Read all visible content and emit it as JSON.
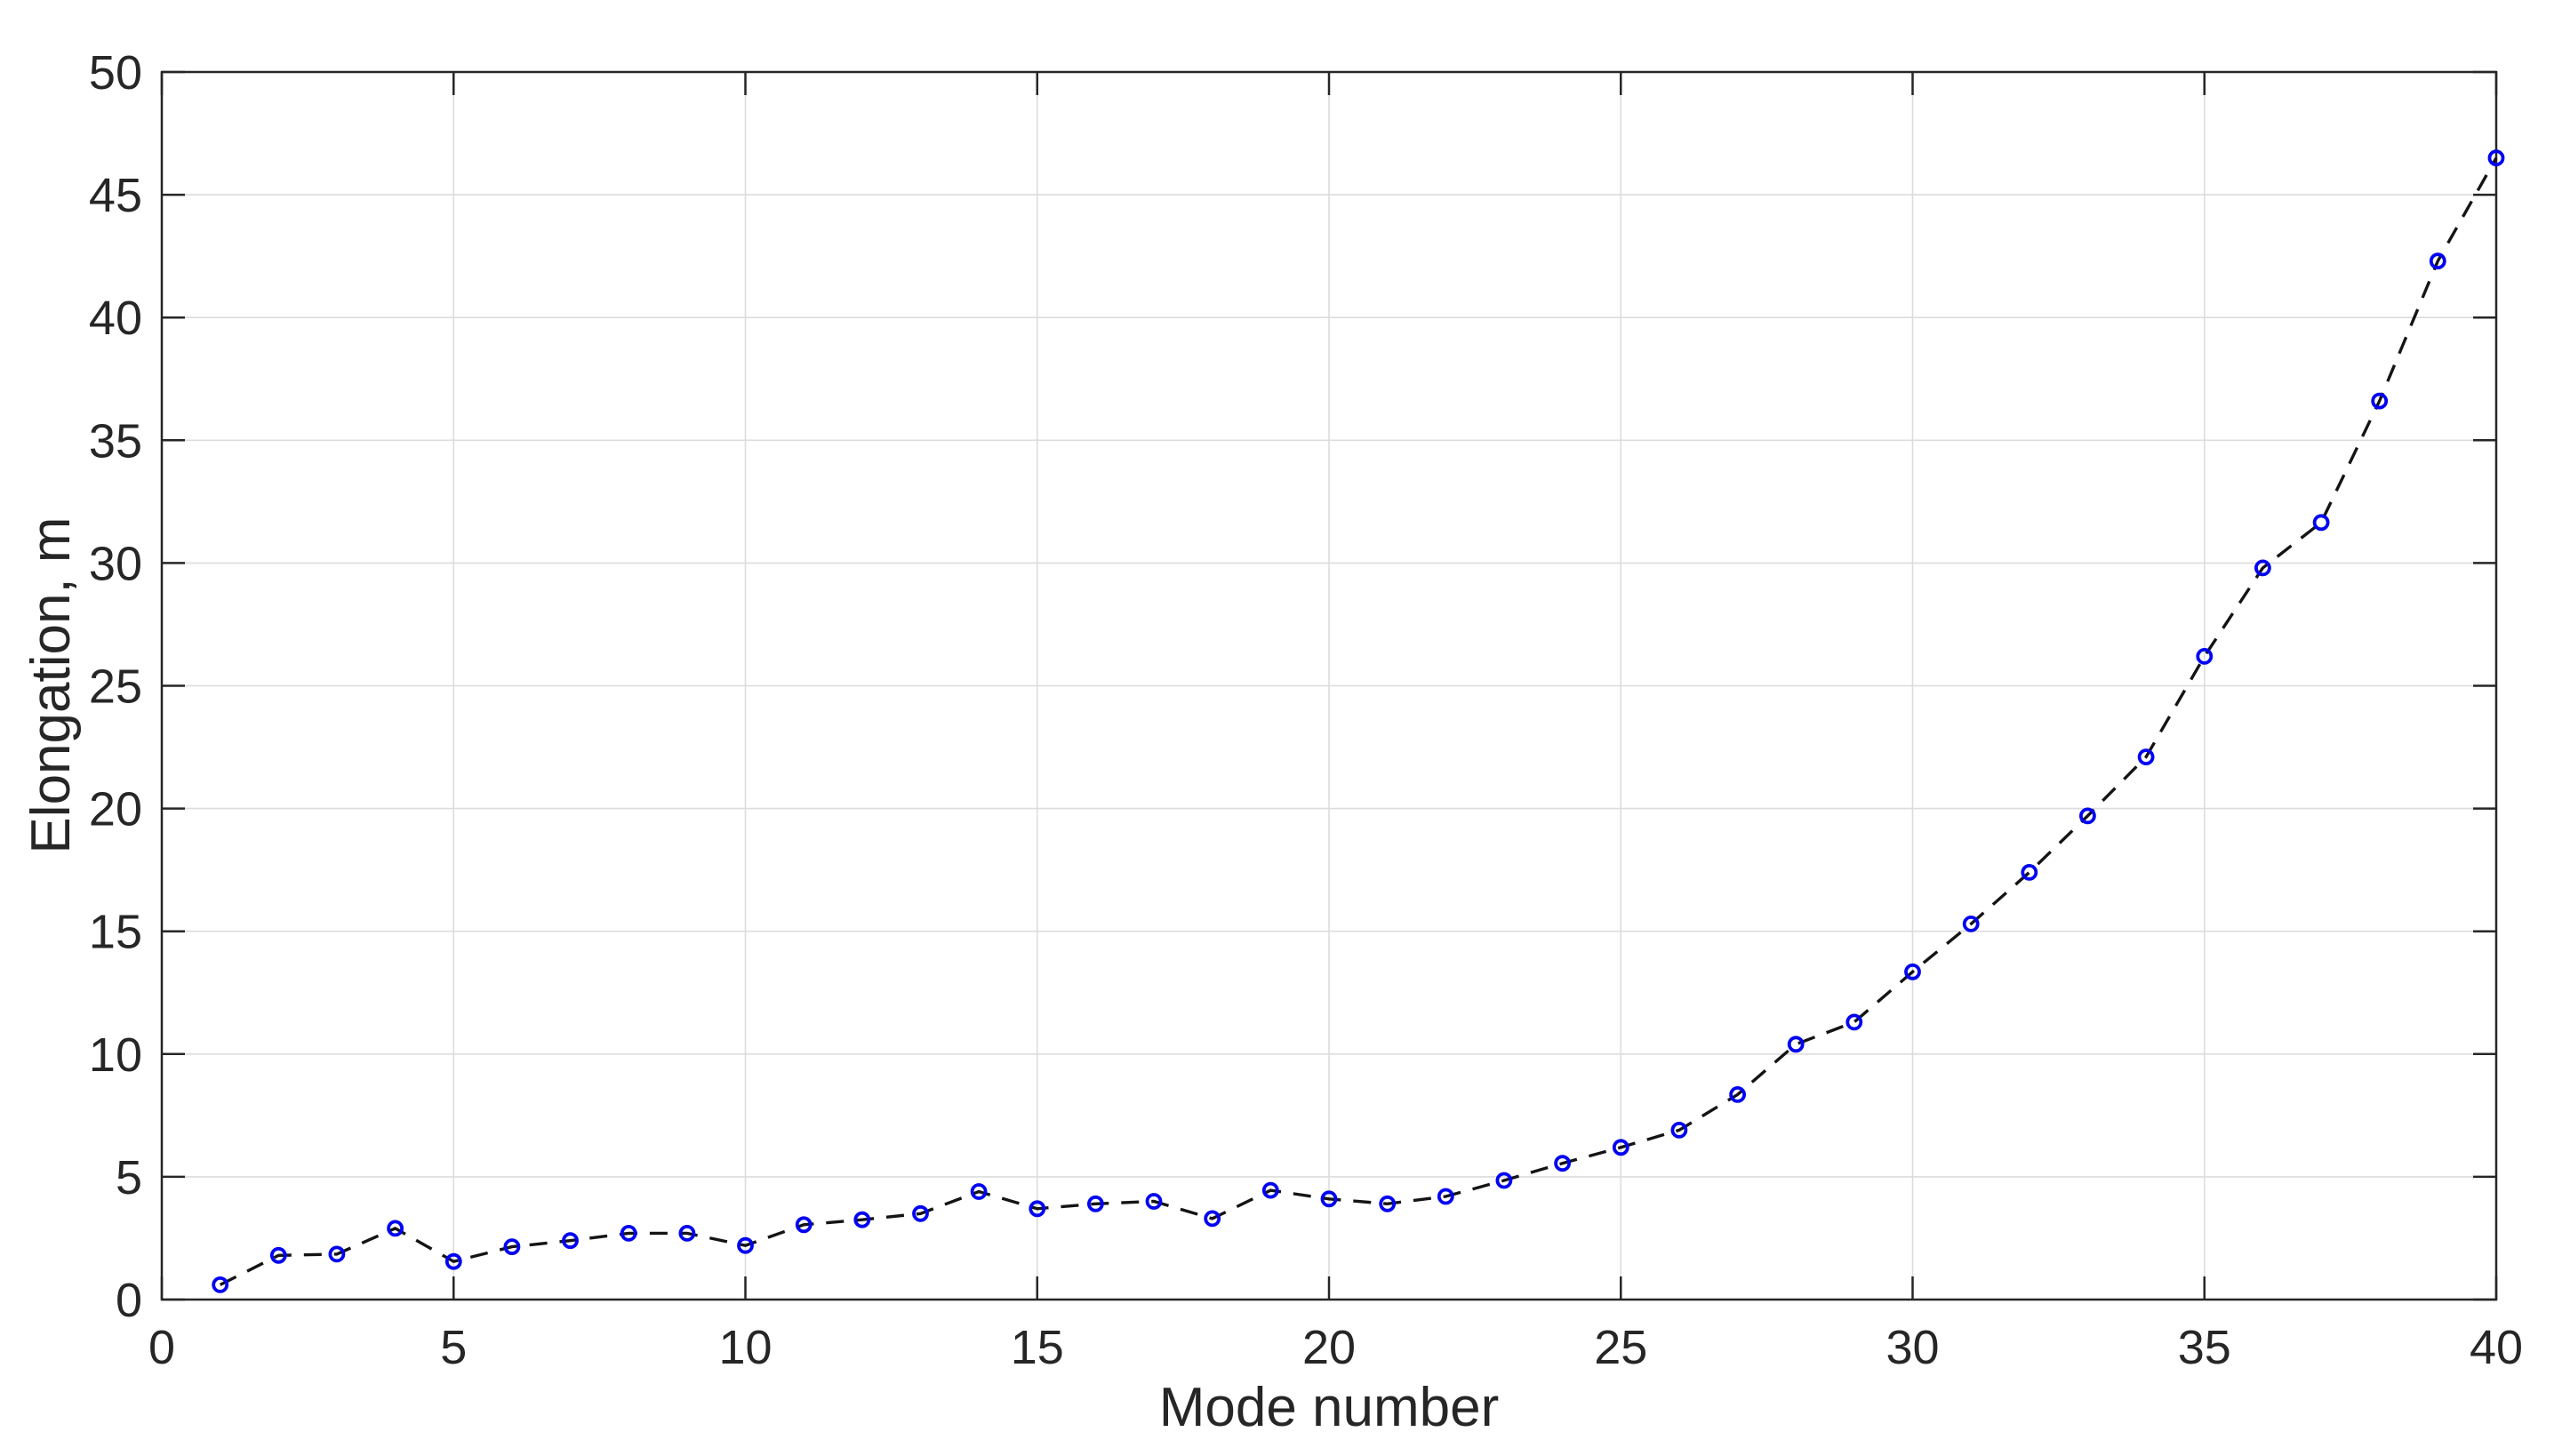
{
  "figure": {
    "background": "#ffffff",
    "axis_color": "#262626",
    "grid_color": "#dcdcdc",
    "text_color": "#262626"
  },
  "chart_data": {
    "type": "line",
    "title": "",
    "xlabel": "Mode number",
    "ylabel": "Elongation, m",
    "x": [
      1,
      2,
      3,
      4,
      5,
      6,
      7,
      8,
      9,
      10,
      11,
      12,
      13,
      14,
      15,
      16,
      17,
      18,
      19,
      20,
      21,
      22,
      23,
      24,
      25,
      26,
      27,
      28,
      29,
      30,
      31,
      32,
      33,
      34,
      35,
      36,
      37,
      38,
      39,
      40
    ],
    "y": [
      0.6,
      1.8,
      1.85,
      2.9,
      1.55,
      2.15,
      2.4,
      2.7,
      2.7,
      2.2,
      3.05,
      3.25,
      3.5,
      4.4,
      3.7,
      3.9,
      4.0,
      3.3,
      4.45,
      4.1,
      3.9,
      4.2,
      4.85,
      5.55,
      6.2,
      6.9,
      8.35,
      10.4,
      11.3,
      13.35,
      15.3,
      17.4,
      19.7,
      22.1,
      26.2,
      29.8,
      31.65,
      36.6,
      42.3,
      46.5
    ],
    "xlim": [
      0,
      40
    ],
    "ylim": [
      0,
      50
    ],
    "xticks": [
      0,
      5,
      10,
      15,
      20,
      25,
      30,
      35,
      40
    ],
    "yticks": [
      0,
      5,
      10,
      15,
      20,
      25,
      30,
      35,
      40,
      45,
      50
    ],
    "grid": true,
    "legend": null,
    "line": {
      "style": "dashed",
      "color": "#141414",
      "width": 3.4,
      "dash": [
        20,
        14
      ]
    },
    "marker": {
      "shape": "circle",
      "color": "#0202f2",
      "radius": 7.5,
      "stroke_width": 3.8
    }
  }
}
